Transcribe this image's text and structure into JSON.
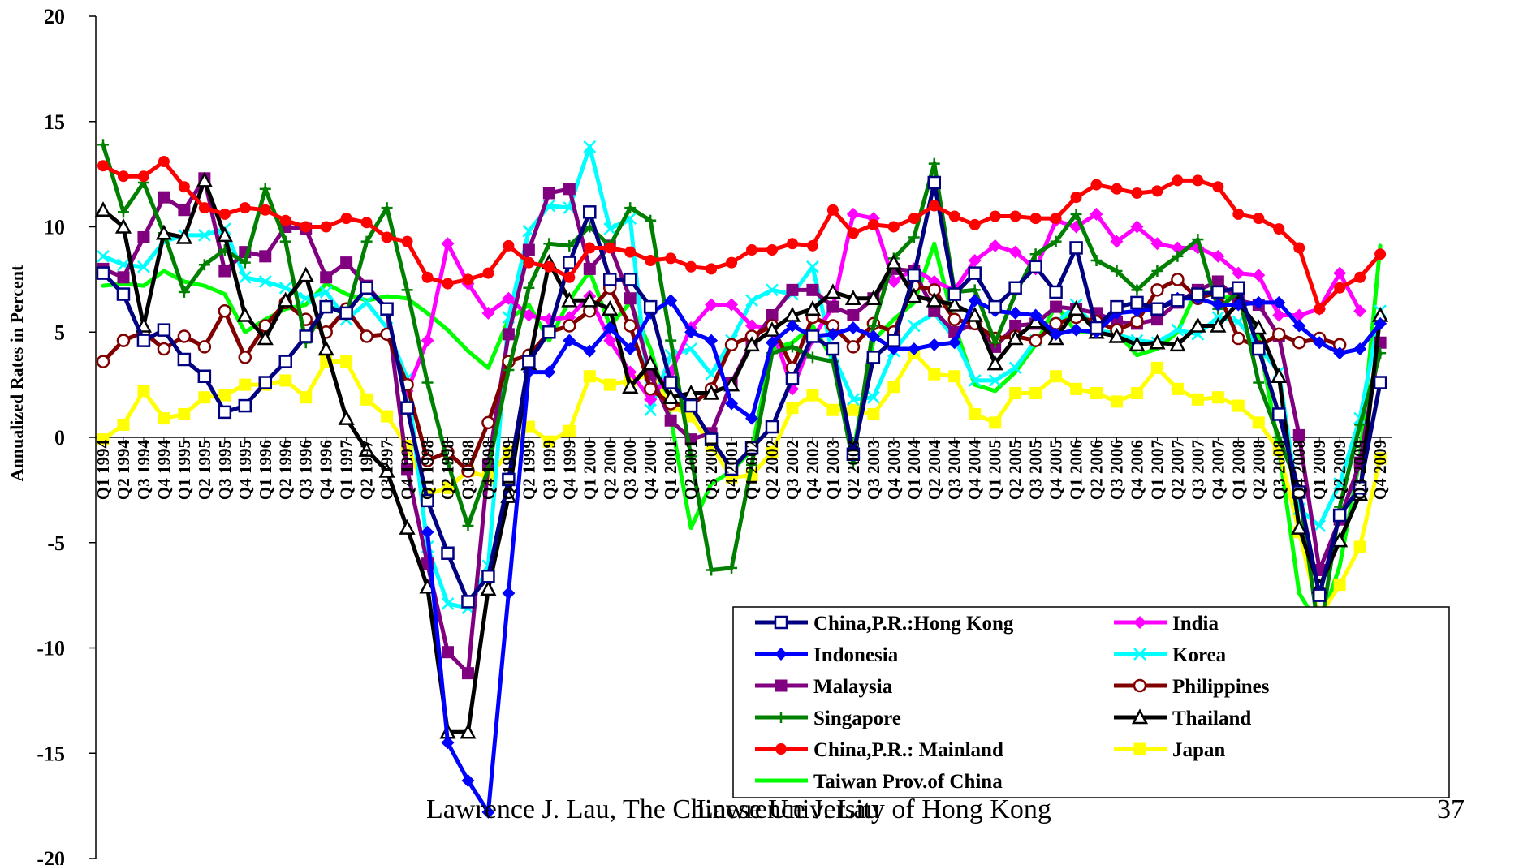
{
  "footer": {
    "left": "Lawrence J. Lau, The Chinese University of Hong Kong",
    "overlap": "Lawrence J. Lau",
    "page": "37"
  },
  "chart_data": {
    "type": "line",
    "title": "",
    "ylabel": "Annualized Rates in Percent",
    "ylim": [
      -20,
      20
    ],
    "yticks": [
      -20,
      -15,
      -10,
      -5,
      0,
      5,
      10,
      15,
      20
    ],
    "grid": false,
    "legend_placement": "bottom-right",
    "x": [
      "Q1 1994",
      "Q2 1994",
      "Q3 1994",
      "Q4 1994",
      "Q1 1995",
      "Q2 1995",
      "Q3 1995",
      "Q4 1995",
      "Q1 1996",
      "Q2 1996",
      "Q3 1996",
      "Q4 1996",
      "Q1 1997",
      "Q2 1997",
      "Q3 1997",
      "Q4 1997",
      "Q1 1998",
      "Q2 1998",
      "Q3 1998",
      "Q4 1998",
      "Q1 1999",
      "Q2 1999",
      "Q3 1999",
      "Q4 1999",
      "Q1 2000",
      "Q2 2000",
      "Q3 2000",
      "Q4 2000",
      "Q1 2001",
      "Q2 2001",
      "Q3 2001",
      "Q4 2001",
      "Q1 2002",
      "Q2 2002",
      "Q3 2002",
      "Q4 2002",
      "Q1 2003",
      "Q2 2003",
      "Q3 2003",
      "Q4 2003",
      "Q1 2004",
      "Q2 2004",
      "Q3 2004",
      "Q4 2004",
      "Q1 2005",
      "Q2 2005",
      "Q3 2005",
      "Q4 2005",
      "Q1 2006",
      "Q2 2006",
      "Q3 2006",
      "Q4 2006",
      "Q1 2007",
      "Q2 2007",
      "Q3 2007",
      "Q4 2007",
      "Q1 2008",
      "Q2 2008",
      "Q3 2008",
      "Q4 2008",
      "Q1 2009",
      "Q2 2009",
      "Q3 2009",
      "Q4 2009"
    ],
    "series": [
      {
        "name": "China,P.R.:Hong Kong",
        "color": "#000080",
        "marker": "square-open",
        "values": [
          7.8,
          6.8,
          4.6,
          5.1,
          3.7,
          2.9,
          1.2,
          1.5,
          2.6,
          3.6,
          4.8,
          6.2,
          5.9,
          7.1,
          6.1,
          1.4,
          -3.0,
          -5.5,
          -7.8,
          -6.6,
          -2.0,
          3.6,
          5.0,
          8.3,
          10.7,
          7.5,
          7.5,
          6.2,
          2.6,
          1.5,
          -0.1,
          -1.5,
          -0.5,
          0.5,
          2.8,
          4.8,
          4.2,
          -0.8,
          3.8,
          4.6,
          7.7,
          12.1,
          6.8,
          7.8,
          6.2,
          7.1,
          8.1,
          6.9,
          9.0,
          5.2,
          6.2,
          6.4,
          6.1,
          6.5,
          6.8,
          6.9,
          7.1,
          4.2,
          1.1,
          -2.6,
          -7.5,
          -3.7,
          -2.4,
          2.6
        ]
      },
      {
        "name": "India",
        "color": "#ff00ff",
        "marker": "diamond",
        "values": [
          null,
          null,
          null,
          null,
          null,
          null,
          null,
          null,
          null,
          null,
          null,
          null,
          null,
          null,
          null,
          2.2,
          4.6,
          9.2,
          7.3,
          5.9,
          6.6,
          5.8,
          5.6,
          5.7,
          6.7,
          4.6,
          3.1,
          1.8,
          3.1,
          5.2,
          6.3,
          6.3,
          5.3,
          5.2,
          2.3,
          4.7,
          6.2,
          10.6,
          10.4,
          7.4,
          8.0,
          7.4,
          7.0,
          8.4,
          9.1,
          8.8,
          8.0,
          10.3,
          10.0,
          10.6,
          9.3,
          10.0,
          9.2,
          9.0,
          9.0,
          8.6,
          7.8,
          7.7,
          5.8,
          5.8,
          6.1,
          7.8,
          6.0,
          null
        ]
      },
      {
        "name": "Indonesia",
        "color": "#0000ff",
        "marker": "diamond",
        "values": [
          null,
          null,
          null,
          null,
          null,
          null,
          null,
          null,
          null,
          null,
          null,
          null,
          null,
          null,
          null,
          null,
          -4.5,
          -14.5,
          -16.3,
          -17.8,
          -7.4,
          3.1,
          3.1,
          4.6,
          4.1,
          5.2,
          4.2,
          5.9,
          6.5,
          5.0,
          4.6,
          1.6,
          0.9,
          4.5,
          5.3,
          4.8,
          4.9,
          5.2,
          4.8,
          4.2,
          4.2,
          4.4,
          4.5,
          6.5,
          6.0,
          5.9,
          5.8,
          4.9,
          5.1,
          5.0,
          5.9,
          6.0,
          6.1,
          6.6,
          6.6,
          6.3,
          6.3,
          6.4,
          6.4,
          5.3,
          4.5,
          4.0,
          4.2,
          5.4
        ]
      },
      {
        "name": "Korea",
        "color": "#00ffff",
        "marker": "x",
        "values": [
          8.6,
          8.2,
          8.1,
          9.3,
          9.6,
          9.6,
          9.9,
          7.6,
          7.4,
          7.1,
          6.6,
          6.9,
          5.6,
          6.4,
          5.2,
          2.8,
          -5.2,
          -7.9,
          -8.1,
          -6.1,
          5.7,
          9.8,
          11.0,
          10.9,
          13.8,
          9.9,
          10.4,
          1.3,
          3.9,
          4.2,
          3.0,
          4.6,
          6.5,
          7.0,
          6.8,
          8.1,
          3.9,
          1.8,
          1.9,
          4.1,
          5.3,
          5.9,
          4.7,
          2.7,
          2.7,
          3.3,
          4.6,
          5.4,
          6.3,
          5.1,
          4.9,
          4.6,
          4.5,
          5.1,
          4.9,
          5.7,
          5.5,
          4.3,
          3.1,
          -3.4,
          -4.2,
          -2.2,
          0.9,
          6.0
        ]
      },
      {
        "name": "Malaysia",
        "color": "#800080",
        "marker": "square",
        "values": [
          8.0,
          7.6,
          9.5,
          11.4,
          10.8,
          12.3,
          7.9,
          8.8,
          8.6,
          10.0,
          9.9,
          7.6,
          8.3,
          7.2,
          6.1,
          -1.5,
          -6.0,
          -10.2,
          -11.2,
          -1.3,
          4.9,
          8.9,
          11.6,
          11.8,
          8.0,
          9.1,
          6.6,
          3.0,
          0.8,
          -0.1,
          0.2,
          2.6,
          4.5,
          5.8,
          7.0,
          7.0,
          6.2,
          5.8,
          6.6,
          8.0,
          7.9,
          6.0,
          5.0,
          5.4,
          4.3,
          5.3,
          5.4,
          6.2,
          6.1,
          5.9,
          5.5,
          5.4,
          5.6,
          6.4,
          7.0,
          7.4,
          6.5,
          6.3,
          4.8,
          0.1,
          -6.3,
          -3.9,
          -1.2,
          4.5
        ]
      },
      {
        "name": "Philippines",
        "color": "#800000",
        "marker": "circle-open",
        "values": [
          3.6,
          4.6,
          5.0,
          4.2,
          4.8,
          4.3,
          6.0,
          3.8,
          5.3,
          6.4,
          5.6,
          5.0,
          6.1,
          4.8,
          4.9,
          2.5,
          -1.1,
          -0.7,
          -1.6,
          0.7,
          3.6,
          3.9,
          5.0,
          5.3,
          6.0,
          7.1,
          5.3,
          2.3,
          1.6,
          1.5,
          2.3,
          4.4,
          4.8,
          5.3,
          3.3,
          5.7,
          5.3,
          4.3,
          5.4,
          5.0,
          7.2,
          7.0,
          5.6,
          5.4,
          4.7,
          4.8,
          4.6,
          5.4,
          5.7,
          5.5,
          5.1,
          5.5,
          7.0,
          7.5,
          6.6,
          6.9,
          4.7,
          4.3,
          4.9,
          4.5,
          4.7,
          4.4,
          null,
          null
        ]
      },
      {
        "name": "Singapore",
        "color": "#008000",
        "marker": "plus",
        "values": [
          13.9,
          10.7,
          12.1,
          9.7,
          6.9,
          8.2,
          8.9,
          8.3,
          11.8,
          9.3,
          4.5,
          6.3,
          5.8,
          9.3,
          10.9,
          7.0,
          2.6,
          -1.2,
          -4.2,
          -1.5,
          3.2,
          7.1,
          9.2,
          9.1,
          10.0,
          9.1,
          10.9,
          10.3,
          4.6,
          -0.9,
          -6.3,
          -6.2,
          -1.3,
          4.0,
          4.3,
          3.8,
          3.6,
          -1.2,
          5.3,
          8.5,
          9.5,
          13.0,
          6.9,
          7.0,
          4.5,
          6.8,
          8.7,
          9.3,
          10.6,
          8.4,
          7.9,
          7.0,
          7.9,
          8.6,
          9.4,
          6.1,
          6.9,
          2.6,
          0.0,
          -2.5,
          -9.5,
          -3.3,
          0.6,
          4.0
        ]
      },
      {
        "name": "Thailand",
        "color": "#000000",
        "marker": "triangle-open",
        "values": [
          10.8,
          10.0,
          5.3,
          9.7,
          9.5,
          12.2,
          9.6,
          5.8,
          4.7,
          6.5,
          7.7,
          4.2,
          0.9,
          -0.6,
          -1.6,
          -4.3,
          -7.1,
          -14.0,
          -14.0,
          -7.2,
          -2.8,
          3.5,
          8.3,
          6.5,
          6.5,
          6.1,
          2.4,
          3.5,
          1.9,
          2.1,
          2.1,
          2.5,
          4.4,
          5.1,
          5.8,
          6.1,
          6.9,
          6.6,
          6.6,
          8.3,
          6.7,
          6.5,
          6.3,
          5.8,
          3.5,
          4.7,
          5.5,
          4.7,
          6.1,
          5.0,
          4.8,
          4.4,
          4.5,
          4.4,
          5.3,
          5.3,
          6.4,
          5.2,
          2.9,
          -4.3,
          -7.1,
          -4.9,
          -2.7,
          5.8
        ]
      },
      {
        "name": "China,P.R.: Mainland",
        "color": "#ff0000",
        "marker": "circle",
        "values": [
          12.9,
          12.4,
          12.4,
          13.1,
          11.9,
          10.9,
          10.6,
          10.9,
          10.8,
          10.3,
          10.0,
          10.0,
          10.4,
          10.2,
          9.5,
          9.3,
          7.6,
          7.3,
          7.5,
          7.8,
          9.1,
          8.3,
          8.1,
          7.6,
          9.0,
          9.0,
          8.8,
          8.4,
          8.5,
          8.1,
          8.0,
          8.3,
          8.9,
          8.9,
          9.2,
          9.1,
          10.8,
          9.7,
          10.1,
          10.0,
          10.4,
          11.0,
          10.5,
          10.1,
          10.5,
          10.5,
          10.4,
          10.4,
          11.4,
          12.0,
          11.8,
          11.6,
          11.7,
          12.2,
          12.2,
          11.9,
          10.6,
          10.4,
          9.9,
          9.0,
          6.1,
          7.1,
          7.6,
          8.7
        ]
      },
      {
        "name": "Japan",
        "color": "#ffff00",
        "marker": "square",
        "values": [
          -0.1,
          0.6,
          2.2,
          0.9,
          1.1,
          1.9,
          2.0,
          2.5,
          2.5,
          2.7,
          1.9,
          3.6,
          3.6,
          1.8,
          1.0,
          -0.4,
          -2.7,
          -2.4,
          -1.6,
          -1.9,
          -0.7,
          0.5,
          -0.2,
          0.3,
          2.9,
          2.5,
          2.7,
          3.0,
          1.5,
          1.0,
          -0.4,
          -1.9,
          -1.8,
          -0.7,
          1.4,
          2.0,
          1.3,
          1.3,
          1.1,
          2.4,
          4.0,
          3.0,
          2.9,
          1.1,
          0.7,
          2.1,
          2.1,
          2.9,
          2.3,
          2.1,
          1.7,
          2.1,
          3.3,
          2.3,
          1.8,
          1.9,
          1.5,
          0.7,
          -0.6,
          -4.5,
          -8.5,
          -7.0,
          -5.2,
          -1.0
        ]
      },
      {
        "name": "Taiwan Prov.of China",
        "color": "#00ff00",
        "marker": "none",
        "values": [
          7.2,
          7.3,
          7.2,
          7.9,
          7.4,
          7.2,
          6.8,
          5.0,
          5.6,
          6.1,
          6.3,
          7.3,
          6.8,
          6.5,
          6.7,
          6.6,
          5.9,
          5.1,
          4.1,
          3.3,
          5.6,
          6.3,
          4.6,
          6.5,
          7.9,
          5.3,
          6.4,
          4.2,
          0.9,
          -4.3,
          -2.2,
          -1.6,
          -0.6,
          4.2,
          4.5,
          5.3,
          3.7,
          -0.7,
          4.6,
          5.6,
          6.4,
          9.2,
          5.3,
          2.5,
          2.2,
          3.1,
          4.4,
          6.3,
          5.0,
          5.0,
          5.0,
          3.9,
          4.2,
          5.0,
          7.1,
          6.6,
          6.7,
          4.7,
          -0.5,
          -7.4,
          -9.0,
          -6.1,
          -1.0,
          9.1
        ]
      }
    ]
  }
}
